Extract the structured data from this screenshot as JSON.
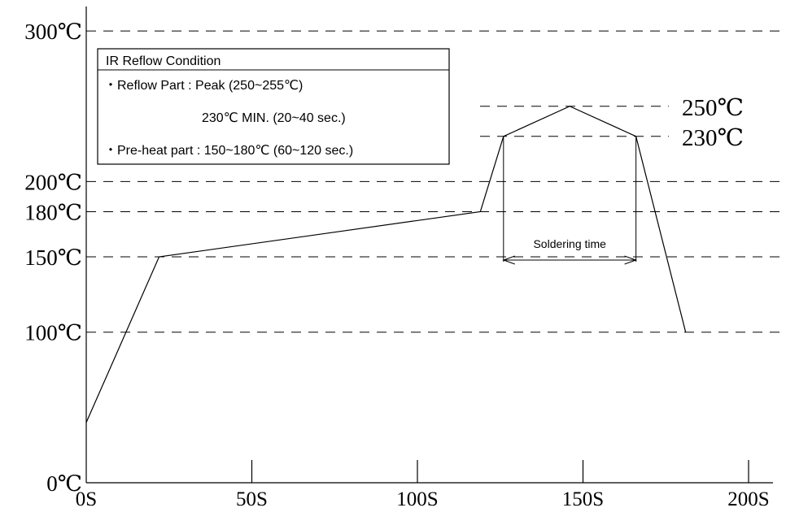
{
  "chart_data": {
    "type": "line",
    "x_unit_suffix": "S",
    "y_unit_suffix": "℃",
    "x_ticks": [
      0,
      50,
      100,
      150,
      200
    ],
    "x_tick_labels": [
      "0S",
      "50S",
      "100S",
      "150S",
      "200S"
    ],
    "y_tick_labels": [
      {
        "value": 0,
        "label": "0℃"
      },
      {
        "value": 100,
        "label": "100℃"
      },
      {
        "value": 150,
        "label": "150℃"
      },
      {
        "value": 180,
        "label": "180℃"
      },
      {
        "value": 200,
        "label": "200℃"
      },
      {
        "value": 300,
        "label": "300℃"
      }
    ],
    "reference_lines": [
      100,
      150,
      180,
      200,
      230,
      250,
      300
    ],
    "peak_labels": [
      {
        "value": 250,
        "label": "250℃"
      },
      {
        "value": 230,
        "label": "230℃"
      }
    ],
    "xlim": [
      0,
      205
    ],
    "ylim": [
      0,
      300
    ],
    "profile": {
      "x": [
        0,
        22,
        119,
        126,
        146,
        166,
        181
      ],
      "y": [
        40,
        150,
        180,
        230,
        250,
        230,
        100
      ]
    },
    "soldering_time": {
      "label": "Soldering time",
      "x_start": 126,
      "x_end": 166
    },
    "legend_box": {
      "title": "IR Reflow Condition",
      "lines": [
        "・Reflow Part : Peak (250~255℃)",
        "230℃  MIN. (20~40 sec.)",
        "・Pre-heat part : 150~180℃  (60~120 sec.)"
      ]
    }
  }
}
